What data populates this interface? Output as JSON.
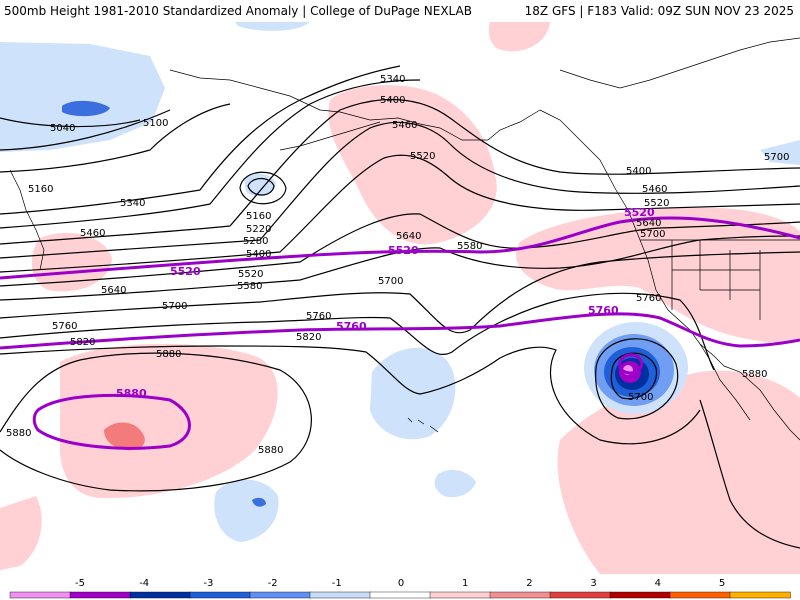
{
  "header": {
    "left_title": "500mb Height 1981-2010 Standardized Anomaly | College of DuPage NEXLAB",
    "right_title": "18Z GFS | F183 Valid: 09Z SUN NOV 23 2025"
  },
  "contour_labels": [
    "5040",
    "5100",
    "5160",
    "5160",
    "5220",
    "5280",
    "5340",
    "5340",
    "5400",
    "5400",
    "5400",
    "5460",
    "5460",
    "5460",
    "5520",
    "5520",
    "5520",
    "5580",
    "5580",
    "5640",
    "5640",
    "5640",
    "5700",
    "5700",
    "5700",
    "5700",
    "5760",
    "5760",
    "5760",
    "5820",
    "5820",
    "5880",
    "5880",
    "5880",
    "5880",
    "5700"
  ],
  "reference_labels": [
    "5520",
    "5520",
    "5520",
    "5760",
    "5760",
    "5880"
  ],
  "colorbar": {
    "ticks": [
      "-5",
      "-4",
      "-3",
      "-2",
      "-1",
      "0",
      "1",
      "2",
      "3",
      "4",
      "5"
    ],
    "colors": [
      "#f090f0",
      "#a000c8",
      "#0030a0",
      "#1f5fd8",
      "#5f8ff0",
      "#c8dcf8",
      "#ffffff",
      "#ffd0d0",
      "#f09090",
      "#e04040",
      "#b00000",
      "#ff6000",
      "#ffb000"
    ]
  },
  "colors": {
    "positive_anomaly": "#ffd0d4",
    "negative_anomaly": "#cfe2fb",
    "reference_contour": "#9b00c8"
  }
}
